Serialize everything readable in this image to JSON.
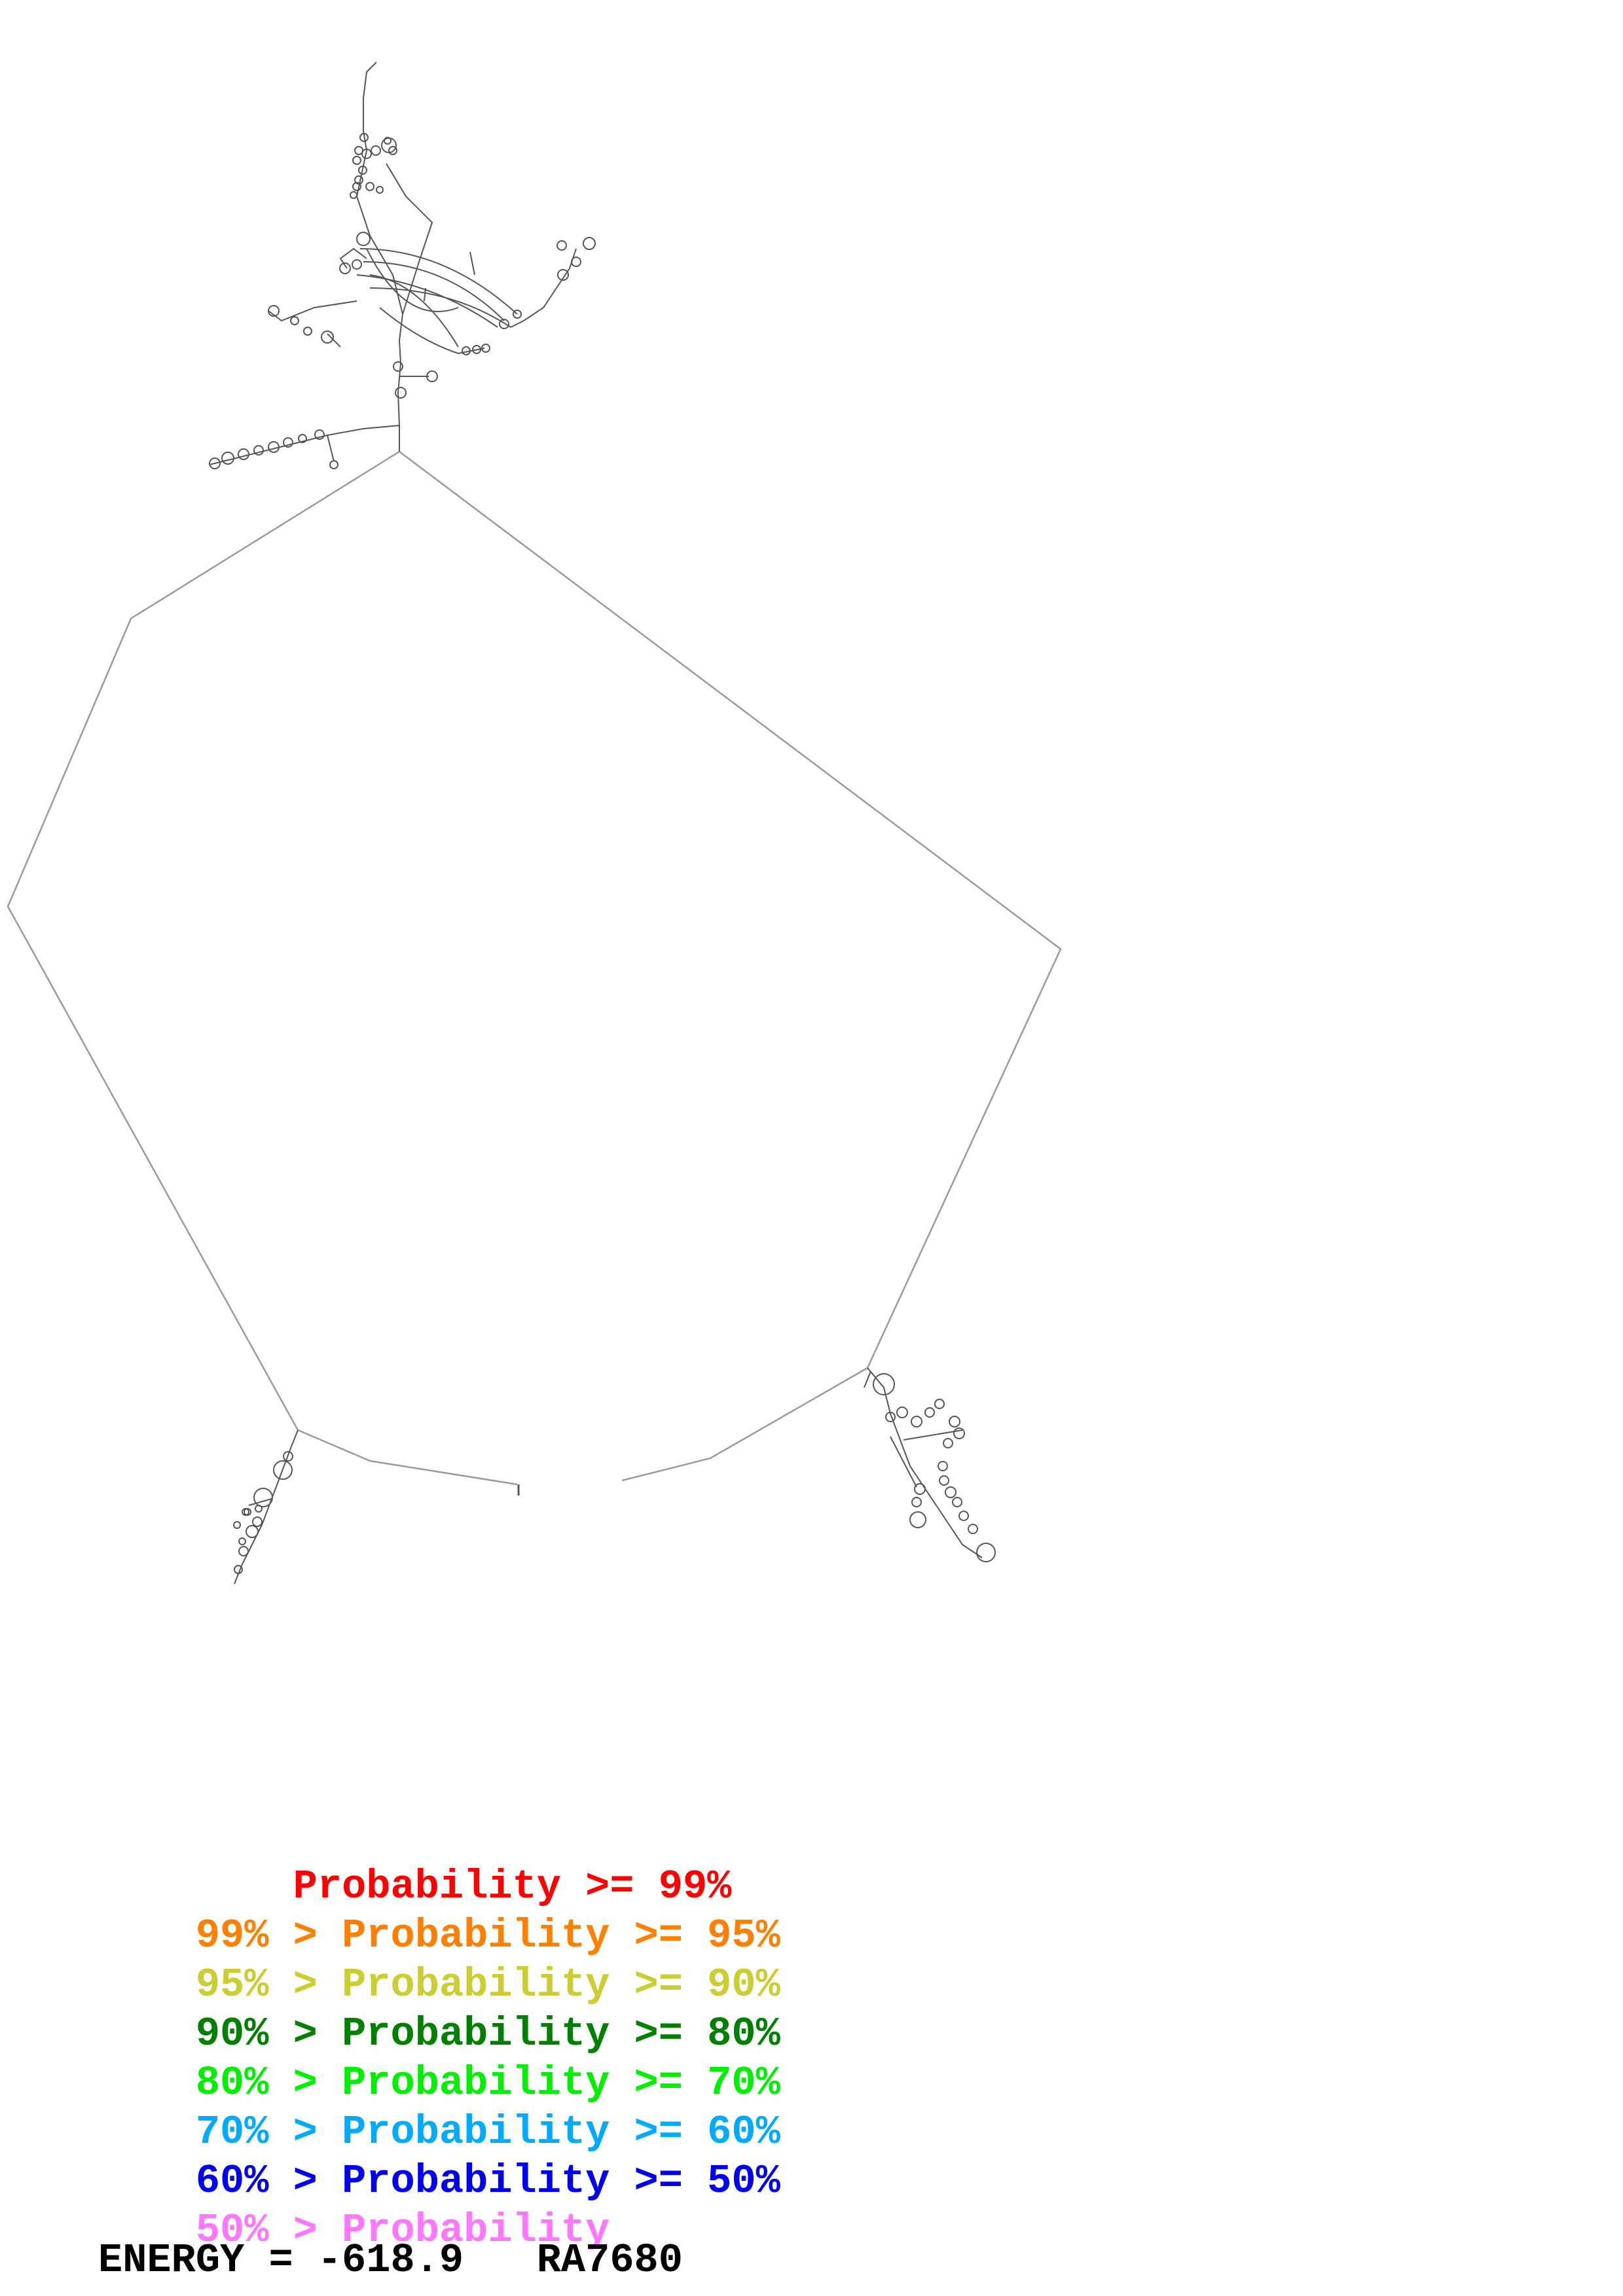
{
  "legend": [
    {
      "prefix": "    ",
      "label": "Probability >= 99%",
      "color": "#ff0000"
    },
    {
      "prefix": "99% > ",
      "label": "Probability >= 95%",
      "color": "#ff8000"
    },
    {
      "prefix": "95% > ",
      "label": "Probability >= 90%",
      "color": "#cccc33"
    },
    {
      "prefix": "90% > ",
      "label": "Probability >= 80%",
      "color": "#008000"
    },
    {
      "prefix": "80% > ",
      "label": "Probability >= 70%",
      "color": "#00ee00"
    },
    {
      "prefix": "70% > ",
      "label": "Probability >= 60%",
      "color": "#00aaff"
    },
    {
      "prefix": "60% > ",
      "label": "Probability >= 50%",
      "color": "#0000ee"
    },
    {
      "prefix": "50% > ",
      "label": "Probability",
      "color": "#ff77ff"
    }
  ],
  "energy": {
    "text": "ENERGY = -618.9",
    "id": "RA7680"
  },
  "colors": {
    "structure_line": "#9a9a9a",
    "structure_detail": "#555555"
  }
}
